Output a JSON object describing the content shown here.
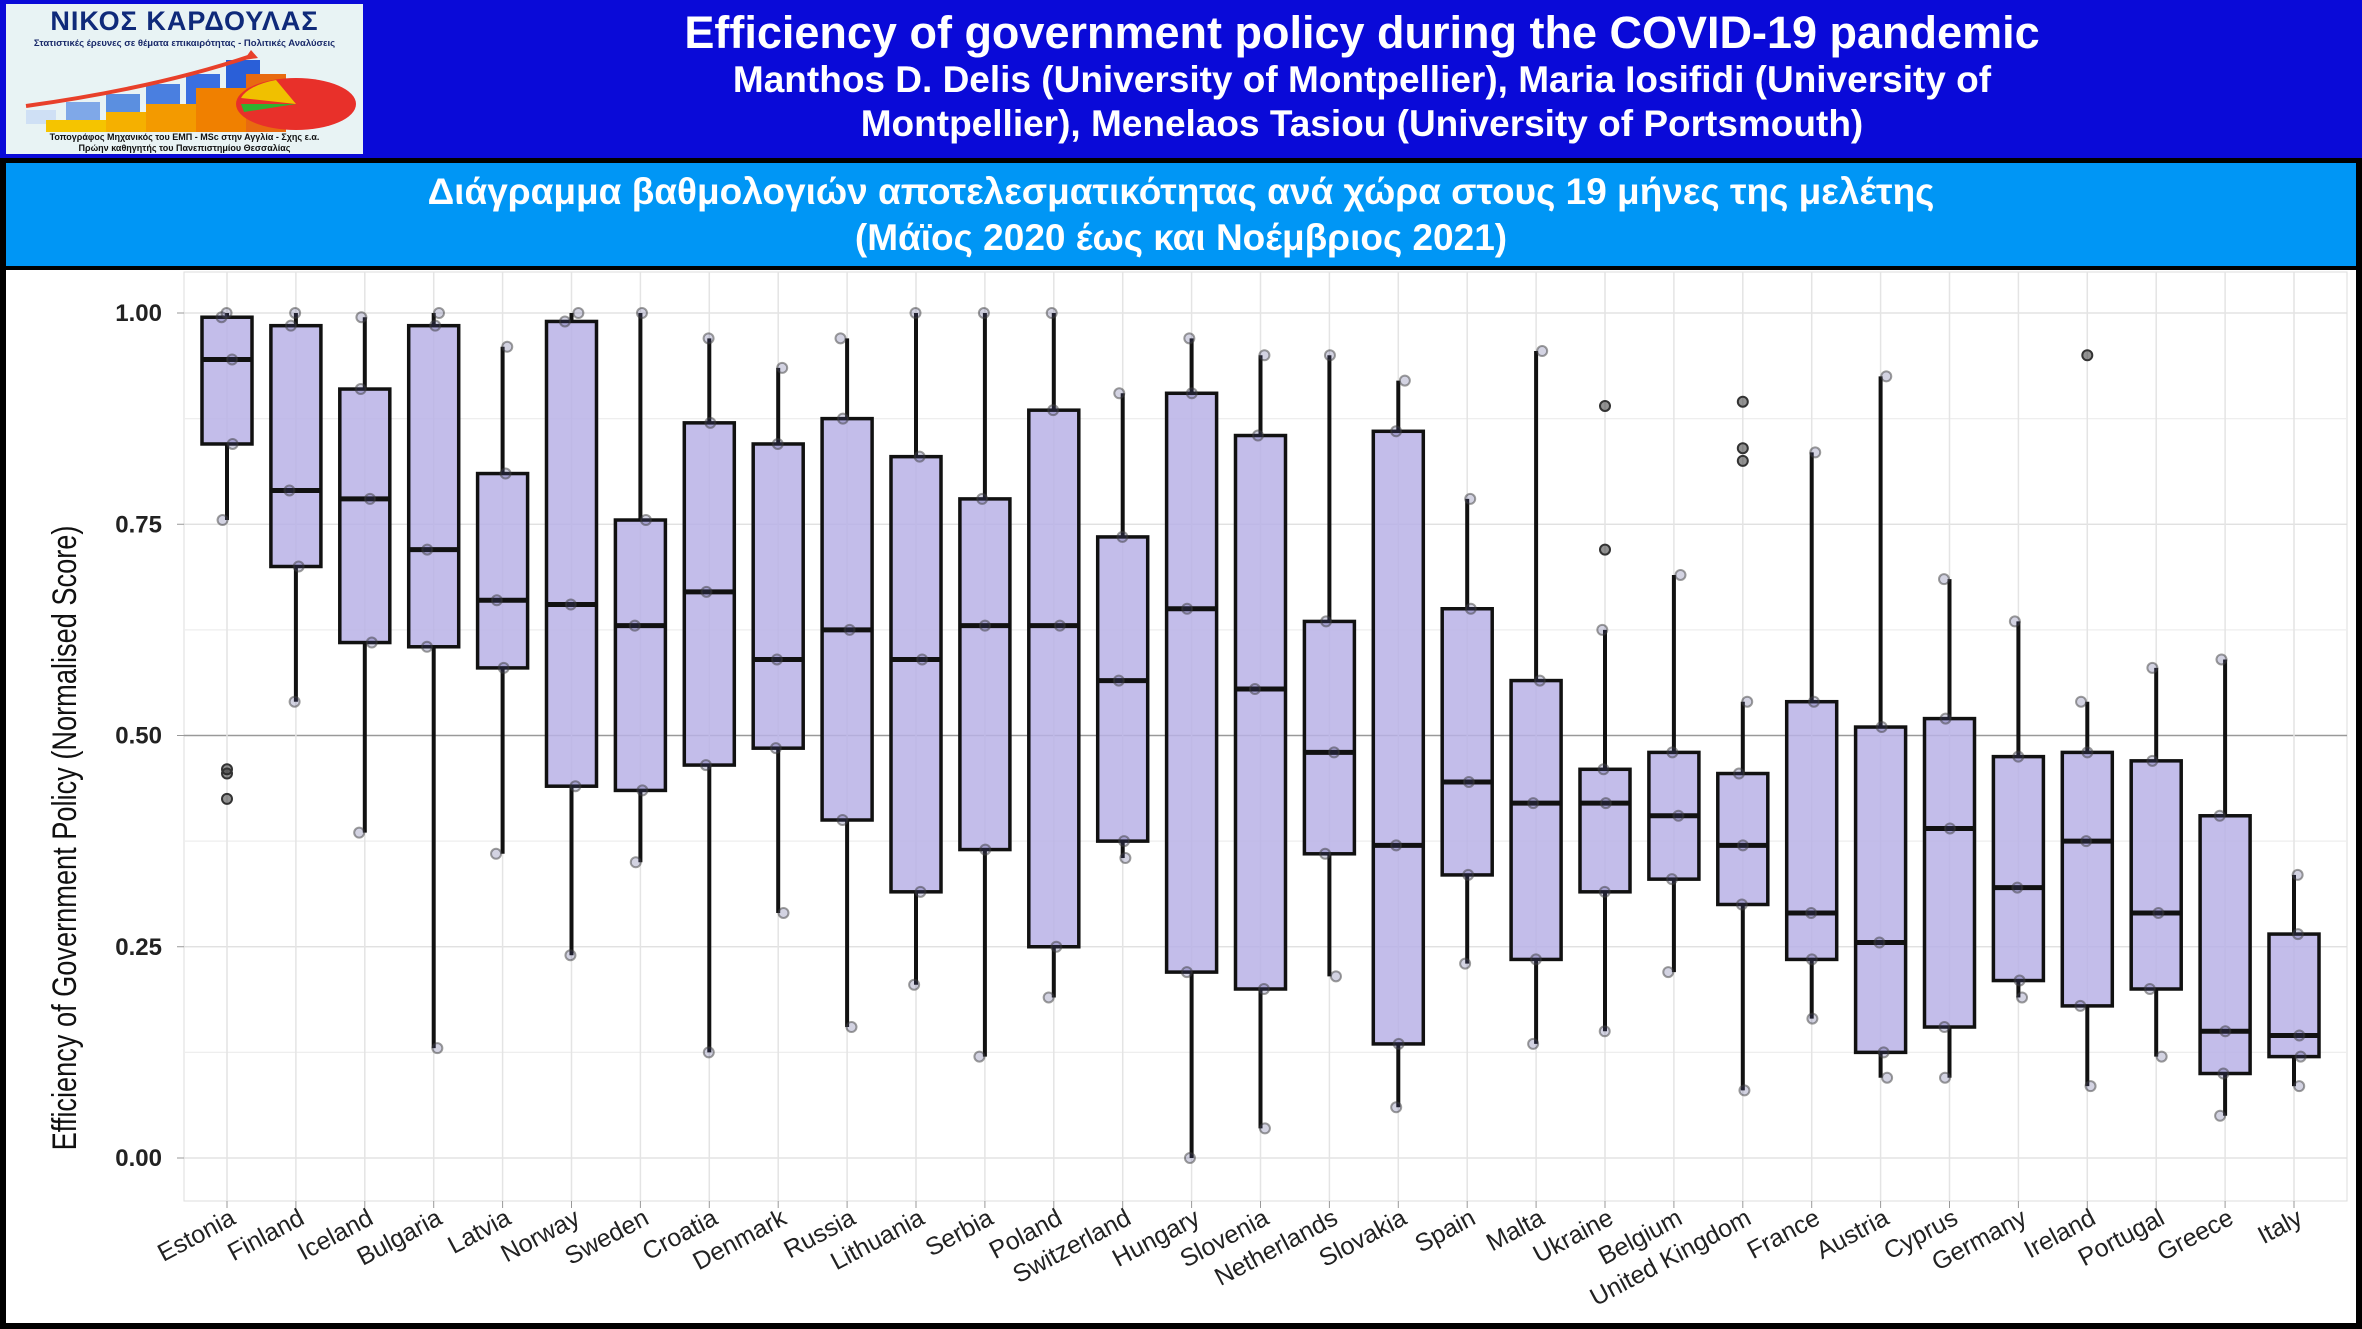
{
  "header": {
    "logo": {
      "name": "ΝΙΚΟΣ ΚΑΡΔΟΥΛΑΣ",
      "tagline": "Στατιστικές έρευνες σε θέματα επικαιρότητας - Πολιτικές Αναλύσεις",
      "line1": "Τοπογράφος Μηχανικός του ΕΜΠ - MSc στην Αγγλία - Σχης ε.α.",
      "line2": "Πρώην καθηγητής του Πανεπιστημίου Θεσσαλίας"
    },
    "title": "Efficiency of government policy during the COVID-19 pandemic",
    "authors_line1": "Manthos D. Delis (University of Montpellier), Maria Iosifidi (University of",
    "authors_line2": "Montpellier), Menelaos Tasiou (University of Portsmouth)",
    "colors": {
      "header_bg": "#0a0ad8",
      "band_bg": "#0096f5"
    }
  },
  "subtitle_band": {
    "line1": "Διάγραμμα βαθμολογιών αποτελεσματικότητας ανά χώρα στους 19 μήνες της μελέτης",
    "line2": "(Μάϊος 2020 έως και Νοέμβριος 2021)"
  },
  "chart_data": {
    "type": "boxplot",
    "xlabel": "",
    "ylabel": "Efficiency of Government Policy (Normalised Score)",
    "ylim": [
      0,
      1
    ],
    "yticks": [
      "0.00",
      "0.25",
      "0.50",
      "0.75",
      "1.00"
    ],
    "grid": true,
    "box_color": "#b8b2e6",
    "categories": [
      "Estonia",
      "Finland",
      "Iceland",
      "Bulgaria",
      "Latvia",
      "Norway",
      "Sweden",
      "Croatia",
      "Denmark",
      "Russia",
      "Lithuania",
      "Serbia",
      "Poland",
      "Switzerland",
      "Hungary",
      "Slovenia",
      "Netherlands",
      "Slovakia",
      "Spain",
      "Malta",
      "Ukraine",
      "Belgium",
      "United Kingdom",
      "France",
      "Austria",
      "Cyprus",
      "Germany",
      "Ireland",
      "Portugal",
      "Greece",
      "Italy"
    ],
    "boxes": [
      {
        "min": 0.755,
        "q1": 0.845,
        "median": 0.945,
        "q3": 0.995,
        "max": 1.0,
        "outliers": [
          0.46,
          0.455,
          0.425
        ]
      },
      {
        "min": 0.54,
        "q1": 0.7,
        "median": 0.79,
        "q3": 0.985,
        "max": 1.0,
        "outliers": []
      },
      {
        "min": 0.385,
        "q1": 0.61,
        "median": 0.78,
        "q3": 0.91,
        "max": 0.995,
        "outliers": []
      },
      {
        "min": 0.13,
        "q1": 0.605,
        "median": 0.72,
        "q3": 0.985,
        "max": 1.0,
        "outliers": []
      },
      {
        "min": 0.36,
        "q1": 0.58,
        "median": 0.66,
        "q3": 0.81,
        "max": 0.96,
        "outliers": []
      },
      {
        "min": 0.24,
        "q1": 0.44,
        "median": 0.655,
        "q3": 0.99,
        "max": 1.0,
        "outliers": []
      },
      {
        "min": 0.35,
        "q1": 0.435,
        "median": 0.63,
        "q3": 0.755,
        "max": 1.0,
        "outliers": []
      },
      {
        "min": 0.125,
        "q1": 0.465,
        "median": 0.67,
        "q3": 0.87,
        "max": 0.97,
        "outliers": []
      },
      {
        "min": 0.29,
        "q1": 0.485,
        "median": 0.59,
        "q3": 0.845,
        "max": 0.935,
        "outliers": []
      },
      {
        "min": 0.155,
        "q1": 0.4,
        "median": 0.625,
        "q3": 0.875,
        "max": 0.97,
        "outliers": []
      },
      {
        "min": 0.205,
        "q1": 0.315,
        "median": 0.59,
        "q3": 0.83,
        "max": 1.0,
        "outliers": []
      },
      {
        "min": 0.12,
        "q1": 0.365,
        "median": 0.63,
        "q3": 0.78,
        "max": 1.0,
        "outliers": []
      },
      {
        "min": 0.19,
        "q1": 0.25,
        "median": 0.63,
        "q3": 0.885,
        "max": 1.0,
        "outliers": []
      },
      {
        "min": 0.355,
        "q1": 0.375,
        "median": 0.565,
        "q3": 0.735,
        "max": 0.905,
        "outliers": []
      },
      {
        "min": 0.0,
        "q1": 0.22,
        "median": 0.65,
        "q3": 0.905,
        "max": 0.97,
        "outliers": []
      },
      {
        "min": 0.035,
        "q1": 0.2,
        "median": 0.555,
        "q3": 0.855,
        "max": 0.95,
        "outliers": []
      },
      {
        "min": 0.215,
        "q1": 0.36,
        "median": 0.48,
        "q3": 0.635,
        "max": 0.95,
        "outliers": []
      },
      {
        "min": 0.06,
        "q1": 0.135,
        "median": 0.37,
        "q3": 0.86,
        "max": 0.92,
        "outliers": []
      },
      {
        "min": 0.23,
        "q1": 0.335,
        "median": 0.445,
        "q3": 0.65,
        "max": 0.78,
        "outliers": []
      },
      {
        "min": 0.135,
        "q1": 0.235,
        "median": 0.42,
        "q3": 0.565,
        "max": 0.955,
        "outliers": []
      },
      {
        "min": 0.15,
        "q1": 0.315,
        "median": 0.42,
        "q3": 0.46,
        "max": 0.625,
        "outliers": [
          0.89,
          0.72
        ]
      },
      {
        "min": 0.22,
        "q1": 0.33,
        "median": 0.405,
        "q3": 0.48,
        "max": 0.69,
        "outliers": []
      },
      {
        "min": 0.08,
        "q1": 0.3,
        "median": 0.37,
        "q3": 0.455,
        "max": 0.54,
        "outliers": [
          0.895,
          0.84,
          0.825
        ]
      },
      {
        "min": 0.165,
        "q1": 0.235,
        "median": 0.29,
        "q3": 0.54,
        "max": 0.835,
        "outliers": []
      },
      {
        "min": 0.095,
        "q1": 0.125,
        "median": 0.255,
        "q3": 0.51,
        "max": 0.925,
        "outliers": []
      },
      {
        "min": 0.095,
        "q1": 0.155,
        "median": 0.39,
        "q3": 0.52,
        "max": 0.685,
        "outliers": []
      },
      {
        "min": 0.19,
        "q1": 0.21,
        "median": 0.32,
        "q3": 0.475,
        "max": 0.635,
        "outliers": []
      },
      {
        "min": 0.085,
        "q1": 0.18,
        "median": 0.375,
        "q3": 0.48,
        "max": 0.54,
        "outliers": [
          0.95
        ]
      },
      {
        "min": 0.12,
        "q1": 0.2,
        "median": 0.29,
        "q3": 0.47,
        "max": 0.58,
        "outliers": []
      },
      {
        "min": 0.05,
        "q1": 0.1,
        "median": 0.15,
        "q3": 0.405,
        "max": 0.59,
        "outliers": []
      },
      {
        "min": 0.085,
        "q1": 0.12,
        "median": 0.145,
        "q3": 0.265,
        "max": 0.335,
        "outliers": []
      }
    ]
  }
}
